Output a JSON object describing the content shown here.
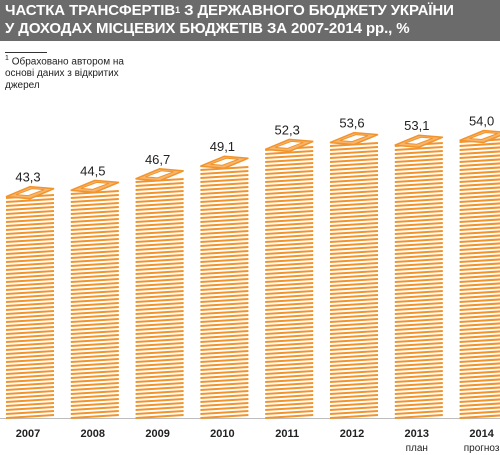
{
  "title": {
    "line1": "ЧАСТКА ТРАНСФЕРТІВ",
    "sup": "1",
    "line1_rest": " З ДЕРЖАВНОГО БЮДЖЕТУ УКРАЇНИ",
    "line2": "У ДОХОДАХ МІСЦЕВИХ БЮДЖЕТІВ ЗА 2007-2014 рр., %"
  },
  "footnote": {
    "mark": "1",
    "text": "Обраховано автором на основі даних з відкритих джерел"
  },
  "colors": {
    "header_bg": "#6b6b6b",
    "sheet_edge": "#f2942c",
    "sheet_face": "#ffffff",
    "top_face": "#f7b46a"
  },
  "chart_data": {
    "type": "bar",
    "title": "ЧАСТКА ТРАНСФЕРТІВ З ДЕРЖАВНОГО БЮДЖЕТУ УКРАЇНИ У ДОХОДАХ МІСЦЕВИХ БЮДЖЕТІВ ЗА 2007-2014 рр., %",
    "categories": [
      "2007",
      "2008",
      "2009",
      "2010",
      "2011",
      "2012",
      "2013",
      "2014"
    ],
    "category_notes": [
      "",
      "",
      "",
      "",
      "",
      "",
      "план",
      "прогноз"
    ],
    "values": [
      43.3,
      44.5,
      46.7,
      49.1,
      52.3,
      53.6,
      53.1,
      54.0
    ],
    "value_labels": [
      "43,3",
      "44,5",
      "46,7",
      "49,1",
      "52,3",
      "53,6",
      "53,1",
      "54,0"
    ],
    "xlabel": "",
    "ylabel": "",
    "grid": false
  }
}
